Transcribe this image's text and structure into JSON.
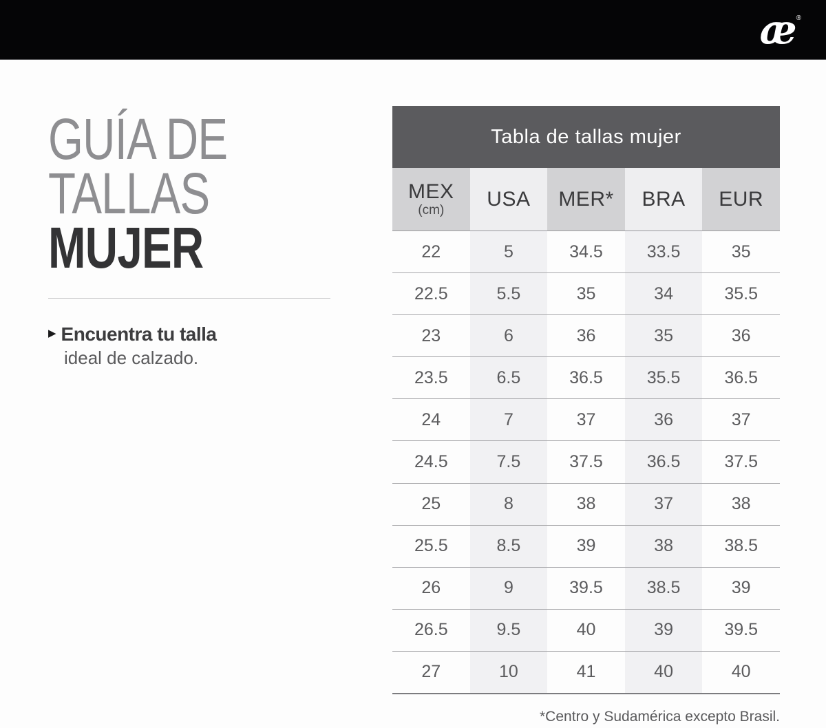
{
  "header": {
    "logo": "æ",
    "registered": "®"
  },
  "left_panel": {
    "title_line1": "GUÍA DE",
    "title_line2": "TALLAS",
    "title_line3": "MUJER",
    "bullet": "▶",
    "tip_bold": "Encuentra tu talla",
    "tip_rest": "ideal de calzado."
  },
  "table": {
    "title": "Tabla de tallas mujer",
    "columns": [
      {
        "label": "MEX",
        "sub": "(cm)"
      },
      {
        "label": "USA",
        "sub": ""
      },
      {
        "label": "MER*",
        "sub": ""
      },
      {
        "label": "BRA",
        "sub": ""
      },
      {
        "label": "EUR",
        "sub": ""
      }
    ],
    "rows": [
      [
        "22",
        "5",
        "34.5",
        "33.5",
        "35"
      ],
      [
        "22.5",
        "5.5",
        "35",
        "34",
        "35.5"
      ],
      [
        "23",
        "6",
        "36",
        "35",
        "36"
      ],
      [
        "23.5",
        "6.5",
        "36.5",
        "35.5",
        "36.5"
      ],
      [
        "24",
        "7",
        "37",
        "36",
        "37"
      ],
      [
        "24.5",
        "7.5",
        "37.5",
        "36.5",
        "37.5"
      ],
      [
        "25",
        "8",
        "38",
        "37",
        "38"
      ],
      [
        "25.5",
        "8.5",
        "39",
        "38",
        "38.5"
      ],
      [
        "26",
        "9",
        "39.5",
        "38.5",
        "39"
      ],
      [
        "26.5",
        "9.5",
        "40",
        "39",
        "39.5"
      ],
      [
        "27",
        "10",
        "41",
        "40",
        "40"
      ]
    ]
  },
  "footnote": "*Centro y Sudamérica excepto Brasil.",
  "colors": {
    "topbar": "#050506",
    "title_band": "#5b5b5e",
    "header_cell_dark": "#d2d2d4",
    "header_cell_light": "#eeeef0",
    "body_shade": "#f1f1f3",
    "heading_gray": "#8e8e91",
    "heading_dark": "#333335"
  }
}
